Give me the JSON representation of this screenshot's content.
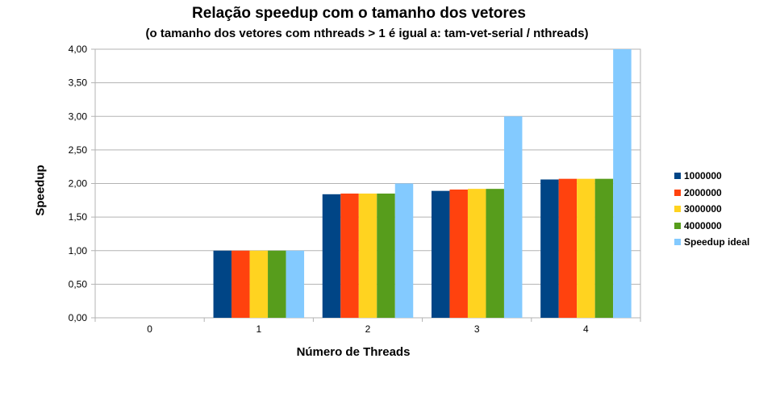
{
  "chart_data": {
    "type": "bar",
    "title": "Relação speedup com o tamanho dos vetores",
    "subtitle": "(o tamanho dos vetores com nthreads > 1 é igual a:  tam-vet-serial / nthreads)",
    "xlabel": "Número de Threads",
    "ylabel": "Speedup",
    "categories": [
      "0",
      "1",
      "2",
      "3",
      "4"
    ],
    "ylim": [
      0,
      4
    ],
    "yticks": [
      "0,00",
      "0,50",
      "1,00",
      "1,50",
      "2,00",
      "2,50",
      "3,00",
      "3,50",
      "4,00"
    ],
    "grid": true,
    "legend_position": "right",
    "series": [
      {
        "name": "1000000",
        "color": "#004586",
        "values": [
          0,
          1.0,
          1.84,
          1.89,
          2.06
        ]
      },
      {
        "name": "2000000",
        "color": "#ff420e",
        "values": [
          0,
          1.0,
          1.85,
          1.91,
          2.07
        ]
      },
      {
        "name": "3000000",
        "color": "#ffd320",
        "values": [
          0,
          1.0,
          1.85,
          1.92,
          2.07
        ]
      },
      {
        "name": "4000000",
        "color": "#579d1c",
        "values": [
          0,
          1.0,
          1.85,
          1.92,
          2.07
        ]
      },
      {
        "name": "Speedup ideal",
        "color": "#83caff",
        "values": [
          0,
          1.0,
          2.0,
          3.0,
          4.0
        ]
      }
    ]
  }
}
